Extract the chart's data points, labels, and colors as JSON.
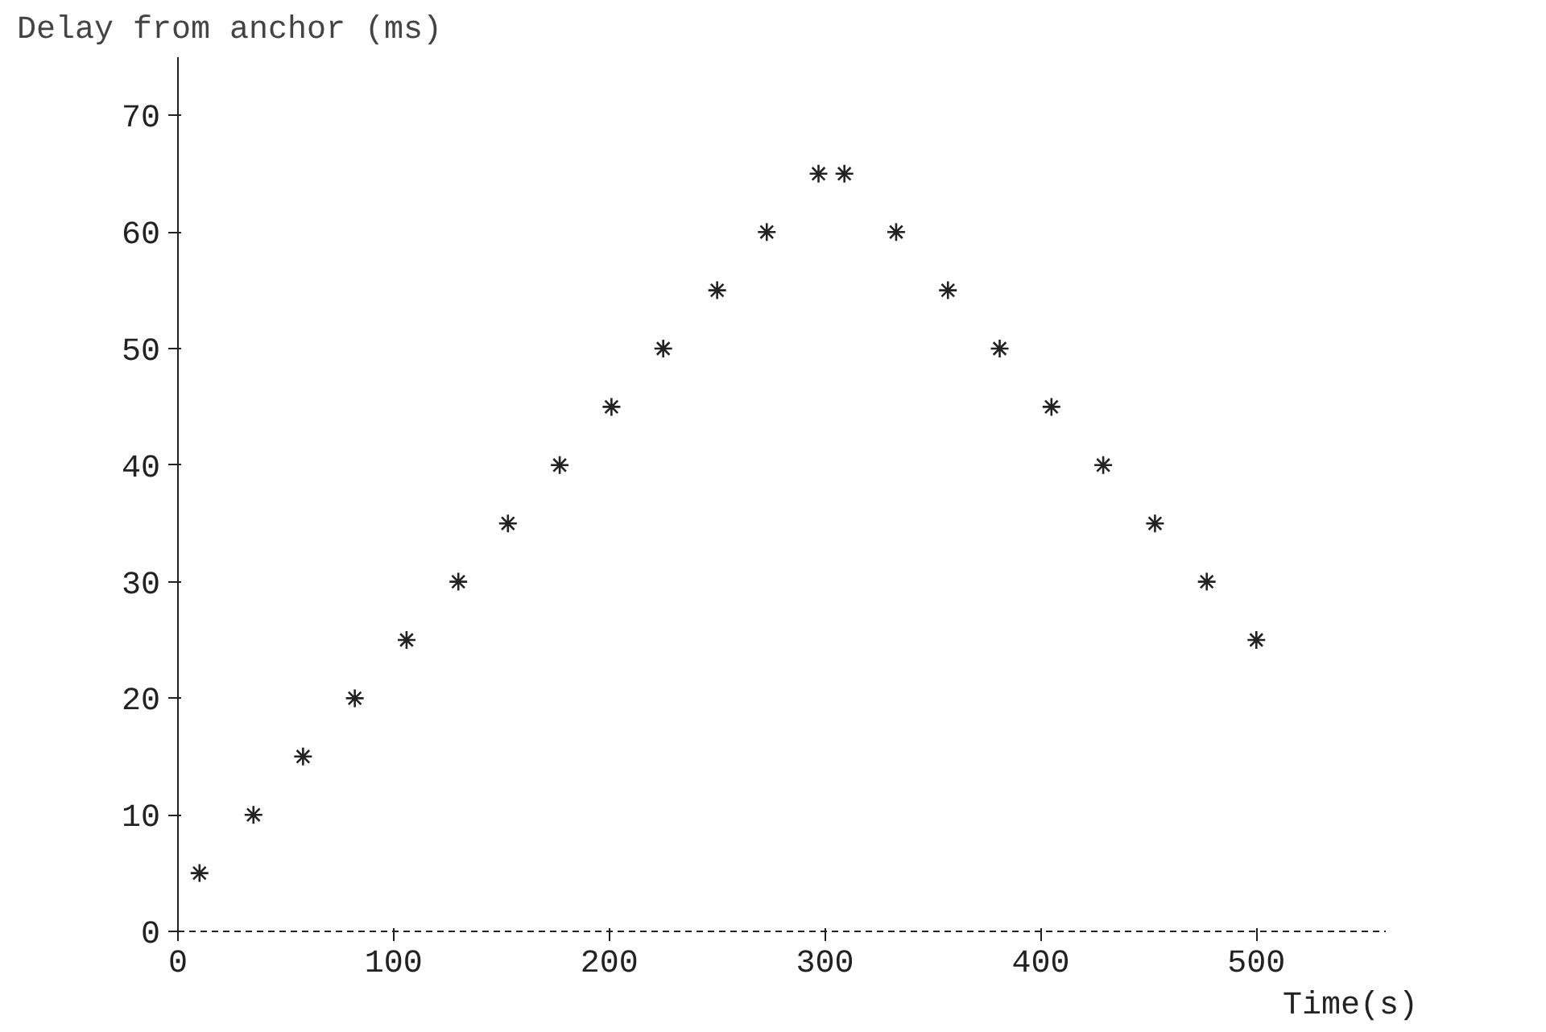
{
  "chart_data": {
    "type": "scatter",
    "xlabel": "Time(s)",
    "ylabel": "Delay from anchor (ms)",
    "x": [
      10,
      35,
      58,
      82,
      106,
      130,
      153,
      177,
      201,
      225,
      250,
      273,
      297,
      309,
      333,
      357,
      381,
      405,
      429,
      453,
      477,
      500
    ],
    "values": [
      5,
      10,
      15,
      20,
      25,
      30,
      35,
      40,
      45,
      50,
      55,
      60,
      65,
      65,
      60,
      55,
      50,
      45,
      40,
      35,
      30,
      25
    ],
    "color": "#222222",
    "marker": "cross",
    "xlim": [
      0,
      560
    ],
    "ylim": [
      0,
      75
    ],
    "xticks": [
      0,
      100,
      200,
      300,
      400,
      500
    ],
    "yticks": [
      0,
      10,
      20,
      30,
      40,
      50,
      60,
      70
    ],
    "grid": false
  }
}
